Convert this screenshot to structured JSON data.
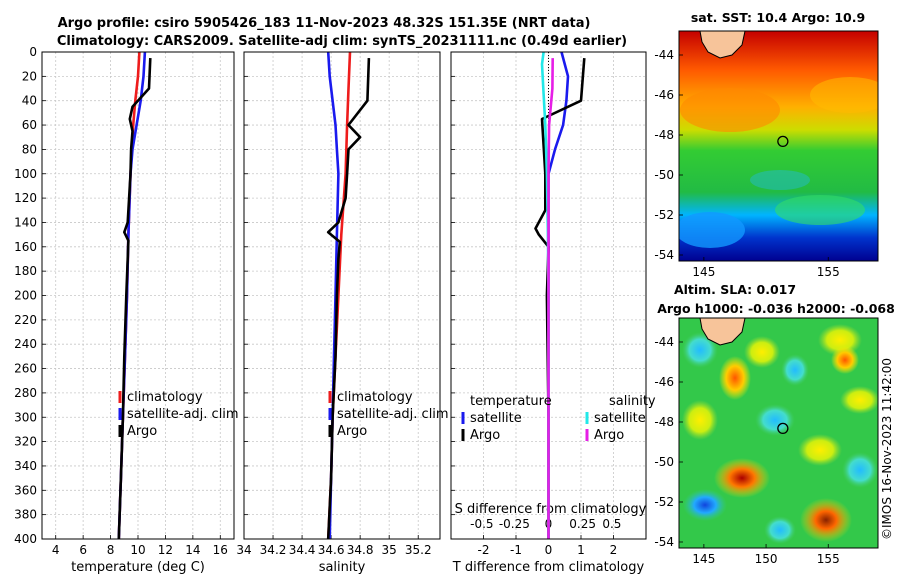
{
  "figure": {
    "title_line1": "Argo profile: csiro 5905426_183 11-Nov-2023 48.32S 151.35E (NRT data)",
    "title_line2": "Climatology: CARS2009. Satellite-adj clim: synTS_20231111.nc (0.49d earlier)",
    "watermark": "©IMOS 16-Nov-2023 11:42:00"
  },
  "colors": {
    "climatology": "#ee1c1c",
    "satellite": "#1a1aee",
    "argo": "#000000",
    "sal_satellite": "#22e8e8",
    "sal_argo": "#e61ee6",
    "land": "#f7c49a"
  },
  "chart_data": [
    {
      "type": "line",
      "name": "temperature-profile",
      "xlabel": "temperature (deg C)",
      "ylabel": "",
      "xlim": [
        3,
        17
      ],
      "ylim": [
        400,
        0
      ],
      "xticks": [
        "4",
        "6",
        "8",
        "10",
        "12",
        "14",
        "16"
      ],
      "yticks": [
        "0",
        "20",
        "40",
        "60",
        "80",
        "100",
        "120",
        "140",
        "160",
        "180",
        "200",
        "220",
        "240",
        "260",
        "280",
        "300",
        "320",
        "340",
        "360",
        "380",
        "400"
      ],
      "grid": true,
      "legend": [
        "climatology",
        "satellite-adj. clim",
        "Argo"
      ],
      "series": [
        {
          "name": "climatology",
          "color": "#ee1c1c",
          "depth": [
            0,
            20,
            40,
            60,
            80,
            100,
            150,
            200,
            250,
            300,
            350,
            400
          ],
          "values": [
            10.1,
            10.0,
            9.8,
            9.65,
            9.55,
            9.45,
            9.3,
            9.2,
            9.05,
            8.9,
            8.75,
            8.6
          ]
        },
        {
          "name": "satellite-adj. clim",
          "color": "#1a1aee",
          "depth": [
            0,
            20,
            40,
            60,
            80,
            100,
            150,
            200,
            250,
            300,
            350,
            400
          ],
          "values": [
            10.5,
            10.4,
            10.2,
            9.9,
            9.6,
            9.45,
            9.3,
            9.2,
            9.05,
            8.9,
            8.75,
            8.6
          ]
        },
        {
          "name": "Argo",
          "color": "#000000",
          "depth": [
            5,
            30,
            45,
            55,
            65,
            80,
            100,
            120,
            140,
            148,
            155,
            170,
            200,
            250,
            300,
            350,
            400
          ],
          "values": [
            10.9,
            10.8,
            9.6,
            9.4,
            9.6,
            9.5,
            9.45,
            9.35,
            9.25,
            9.0,
            9.3,
            9.25,
            9.15,
            9.0,
            8.9,
            8.75,
            8.6
          ]
        }
      ]
    },
    {
      "type": "line",
      "name": "salinity-profile",
      "xlabel": "salinity",
      "xlim": [
        34.0,
        35.35
      ],
      "ylim": [
        400,
        0
      ],
      "xticks": [
        "34",
        "34.2",
        "34.4",
        "34.6",
        "34.8",
        "35",
        "35.2"
      ],
      "grid": true,
      "legend": [
        "climatology",
        "satellite-adj. clim",
        "Argo"
      ],
      "series": [
        {
          "name": "climatology",
          "color": "#ee1c1c",
          "depth": [
            0,
            30,
            60,
            100,
            150,
            200,
            250,
            300,
            350,
            400
          ],
          "values": [
            34.73,
            34.72,
            34.71,
            34.7,
            34.67,
            34.65,
            34.63,
            34.61,
            34.6,
            34.58
          ]
        },
        {
          "name": "satellite-adj. clim",
          "color": "#1a1aee",
          "depth": [
            0,
            20,
            40,
            60,
            80,
            100,
            150,
            200,
            250,
            300,
            350,
            400
          ],
          "values": [
            34.58,
            34.59,
            34.61,
            34.63,
            34.64,
            34.65,
            34.64,
            34.63,
            34.62,
            34.61,
            34.6,
            34.59
          ]
        },
        {
          "name": "Argo",
          "color": "#000000",
          "depth": [
            5,
            40,
            60,
            70,
            80,
            100,
            120,
            140,
            148,
            156,
            170,
            200,
            250,
            300,
            350,
            400
          ],
          "values": [
            34.86,
            34.85,
            34.72,
            34.8,
            34.72,
            34.71,
            34.7,
            34.65,
            34.58,
            34.66,
            34.65,
            34.64,
            34.63,
            34.61,
            34.6,
            34.58
          ]
        }
      ]
    },
    {
      "type": "line",
      "name": "difference-profile",
      "xlabel": "T difference from climatology",
      "xlabel_top": "S difference from climatology",
      "xlim": [
        -3,
        3
      ],
      "ylim": [
        400,
        0
      ],
      "xticks": [
        "-2",
        "-1",
        "0",
        "1",
        "2"
      ],
      "xticks_salinity": [
        "-0.5",
        "-0.25",
        "0",
        "0.25",
        "0.5"
      ],
      "grid": true,
      "legend_left_title": "temperature",
      "legend_right_title": "salinity",
      "legend": [
        "satellite",
        "Argo",
        "satellite",
        "Argo"
      ],
      "series": [
        {
          "name": "temperature satellite",
          "color": "#1a1aee",
          "depth": [
            0,
            20,
            40,
            60,
            80,
            100,
            130,
            160,
            200,
            300,
            400
          ],
          "values": [
            0.4,
            0.6,
            0.55,
            0.45,
            0.2,
            0.0,
            0.0,
            0.0,
            0.0,
            0.0,
            0.0
          ]
        },
        {
          "name": "temperature Argo",
          "color": "#000000",
          "depth": [
            5,
            40,
            55,
            100,
            130,
            145,
            150,
            160,
            200,
            300,
            400
          ],
          "values": [
            1.1,
            1.0,
            -0.2,
            -0.1,
            -0.1,
            -0.4,
            -0.3,
            0.0,
            -0.05,
            0.0,
            0.0
          ]
        },
        {
          "name": "salinity satellite",
          "color": "#22e8e8",
          "depth": [
            0,
            10,
            30,
            60,
            100,
            150,
            200,
            300,
            400
          ],
          "values": [
            -0.15,
            -0.2,
            -0.16,
            -0.1,
            -0.05,
            -0.02,
            0.0,
            0.0,
            0.0
          ]
        },
        {
          "name": "salinity Argo",
          "color": "#e61ee6",
          "depth": [
            5,
            30,
            60,
            80,
            100,
            150,
            200,
            300,
            400
          ],
          "values": [
            0.13,
            0.12,
            0.02,
            0.01,
            0.0,
            0.0,
            0.0,
            0.0,
            0.0
          ]
        }
      ]
    },
    {
      "type": "heatmap",
      "name": "sst-map",
      "title": "sat. SST: 10.4 Argo: 10.9",
      "xticks": [
        "145",
        "155"
      ],
      "yticks": [
        "-44",
        "-46",
        "-48",
        "-50",
        "-52",
        "-54"
      ],
      "xlim": [
        143,
        159
      ],
      "ylim": [
        -54.3,
        -42.8
      ],
      "float_position": {
        "lon": 151.35,
        "lat": -48.32
      }
    },
    {
      "type": "heatmap",
      "name": "sla-map",
      "title": "Altim. SLA: 0.017",
      "subtitle": "Argo h1000: -0.036 h2000: -0.068",
      "xticks": [
        "145",
        "150",
        "155"
      ],
      "yticks": [
        "-44",
        "-46",
        "-48",
        "-50",
        "-52",
        "-54"
      ],
      "xlim": [
        143,
        159
      ],
      "ylim": [
        -54.3,
        -42.8
      ],
      "float_position": {
        "lon": 151.35,
        "lat": -48.32
      }
    }
  ]
}
